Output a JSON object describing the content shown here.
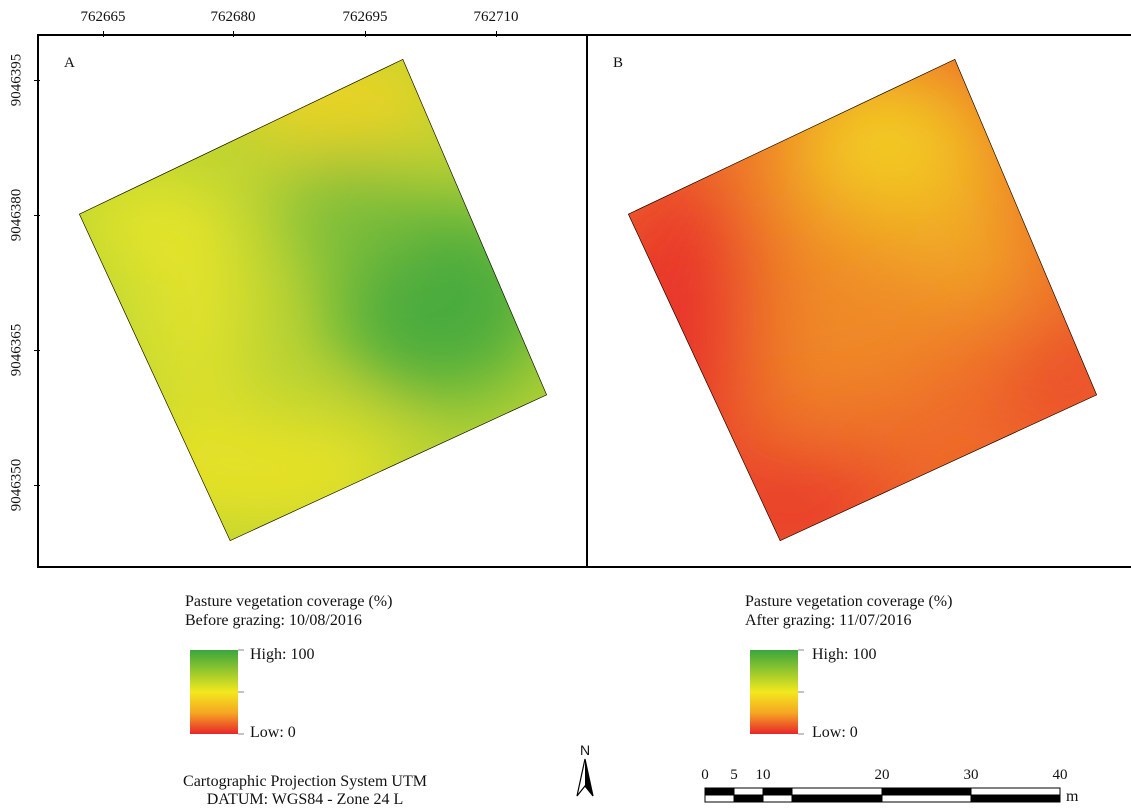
{
  "axes": {
    "x_ticks": [
      "762665",
      "762680",
      "762695",
      "762710"
    ],
    "y_ticks": [
      "9046395",
      "9046380",
      "9046365",
      "9046350"
    ]
  },
  "panels": [
    {
      "letter": "A",
      "legend": {
        "title": "Pasture vegetation coverage (%)",
        "subtitle": "Before grazing: 10/08/2016",
        "high": "High: 100",
        "low": "Low: 0"
      }
    },
    {
      "letter": "B",
      "legend": {
        "title": "Pasture vegetation coverage (%)",
        "subtitle": "After grazing: 11/07/2016",
        "high": "High: 100",
        "low": "Low: 0"
      }
    }
  ],
  "footer": {
    "projection": "Cartographic Projection System UTM",
    "datum": "DATUM: WGS84 - Zone 24 L",
    "north": "N"
  },
  "scalebar": {
    "labels": [
      "0",
      "5",
      "10",
      "20",
      "30",
      "40"
    ],
    "unit": "m"
  },
  "colors": {
    "high": "#3aa63d",
    "mid": "#f2e81e",
    "low": "#e8262a"
  }
}
